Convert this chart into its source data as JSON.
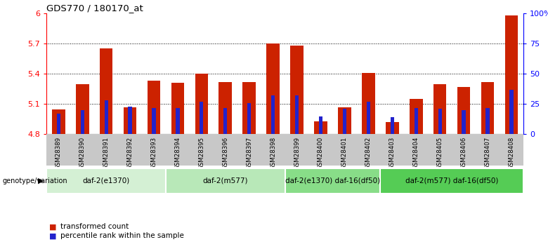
{
  "title": "GDS770 / 180170_at",
  "samples": [
    "GSM28389",
    "GSM28390",
    "GSM28391",
    "GSM28392",
    "GSM28393",
    "GSM28394",
    "GSM28395",
    "GSM28396",
    "GSM28397",
    "GSM28398",
    "GSM28399",
    "GSM28400",
    "GSM28401",
    "GSM28402",
    "GSM28403",
    "GSM28404",
    "GSM28405",
    "GSM28406",
    "GSM28407",
    "GSM28408"
  ],
  "transformed_count": [
    5.05,
    5.3,
    5.65,
    5.07,
    5.33,
    5.31,
    5.4,
    5.32,
    5.32,
    5.7,
    5.68,
    4.93,
    5.07,
    5.41,
    4.92,
    5.15,
    5.3,
    5.27,
    5.32,
    5.98
  ],
  "percentile_rank": [
    17,
    20,
    28,
    23,
    22,
    22,
    27,
    22,
    26,
    32,
    32,
    15,
    21,
    27,
    14,
    22,
    21,
    20,
    22,
    37
  ],
  "percentile_max": 100,
  "y_min": 4.8,
  "y_max": 6.0,
  "y_ticks": [
    4.8,
    5.1,
    5.4,
    5.7,
    6.0
  ],
  "y_tick_labels": [
    "4.8",
    "5.1",
    "5.4",
    "5.7",
    "6"
  ],
  "right_y_ticks": [
    0,
    25,
    50,
    75,
    100
  ],
  "right_y_labels": [
    "0",
    "25",
    "50",
    "75",
    "100%"
  ],
  "bar_color": "#cc2200",
  "percentile_color": "#2222cc",
  "groups": [
    {
      "label": "daf-2(e1370)",
      "start": 0,
      "end": 4,
      "color": "#d4f0d4"
    },
    {
      "label": "daf-2(m577)",
      "start": 5,
      "end": 9,
      "color": "#b8e8b8"
    },
    {
      "label": "daf-2(e1370) daf-16(df50)",
      "start": 10,
      "end": 13,
      "color": "#88dd88"
    },
    {
      "label": "daf-2(m577) daf-16(df50)",
      "start": 14,
      "end": 19,
      "color": "#55cc55"
    }
  ],
  "bar_width": 0.55,
  "base_value": 4.8,
  "legend_red": "transformed count",
  "legend_blue": "percentile rank within the sample",
  "genotype_label": "genotype/variation"
}
